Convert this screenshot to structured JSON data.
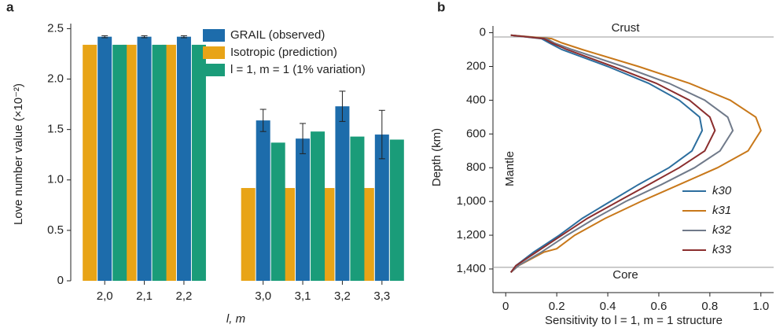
{
  "chart_data": [
    {
      "type": "bar",
      "panel_label": "a",
      "y_label": "Love number value (×10⁻²)",
      "x_label": "l, m",
      "categories": [
        "2,0",
        "2,1",
        "2,2",
        null,
        "3,0",
        "3,1",
        "3,2",
        "3,3"
      ],
      "series": [
        {
          "name": "GRAIL (observed)",
          "color": "#1d6cab",
          "values": [
            2.42,
            2.42,
            2.42,
            null,
            1.59,
            1.41,
            1.73,
            1.45
          ],
          "errors": [
            0.01,
            0.01,
            0.01,
            null,
            0.11,
            0.15,
            0.15,
            0.24
          ]
        },
        {
          "name": "Isotropic (prediction)",
          "color": "#e8a417",
          "values": [
            2.34,
            2.34,
            2.34,
            null,
            0.92,
            0.92,
            0.92,
            0.92
          ]
        },
        {
          "name": "l = 1, m = 1 (1% variation)",
          "color": "#1a9c79",
          "values": [
            2.34,
            2.34,
            2.34,
            null,
            1.37,
            1.48,
            1.43,
            1.4
          ]
        }
      ],
      "ylim": [
        0,
        2.55
      ],
      "yticks": [
        0,
        0.5,
        {
          "value": 1.0,
          "label": "1.0"
        },
        1.5,
        {
          "value": 2.0,
          "label": "2.0"
        },
        2.5
      ],
      "legend": "upper right"
    },
    {
      "type": "line",
      "panel_label": "b",
      "x_label": "Sensitivity to l = 1, m = 1 structure",
      "y_label": "Depth (km)",
      "y": [
        15,
        35,
        60,
        100,
        200,
        300,
        400,
        500,
        580,
        700,
        800,
        900,
        1000,
        1100,
        1200,
        1280,
        1300,
        1380,
        1420
      ],
      "series": [
        {
          "name": "k30",
          "color": "#2c6e9e",
          "values": [
            0.02,
            0.14,
            0.17,
            0.22,
            0.4,
            0.56,
            0.68,
            0.76,
            0.77,
            0.73,
            0.64,
            0.52,
            0.41,
            0.3,
            0.21,
            0.13,
            0.11,
            0.04,
            0.02
          ]
        },
        {
          "name": "k31",
          "color": "#c8781a",
          "values": [
            0.02,
            0.18,
            0.22,
            0.3,
            0.52,
            0.72,
            0.88,
            0.98,
            1.0,
            0.95,
            0.83,
            0.68,
            0.53,
            0.39,
            0.27,
            0.2,
            0.15,
            0.05,
            0.02
          ]
        },
        {
          "name": "k32",
          "color": "#707a8a",
          "values": [
            0.02,
            0.16,
            0.19,
            0.26,
            0.46,
            0.64,
            0.78,
            0.87,
            0.89,
            0.84,
            0.74,
            0.61,
            0.47,
            0.35,
            0.24,
            0.16,
            0.14,
            0.05,
            0.02
          ]
        },
        {
          "name": "k33",
          "color": "#8b2e2e",
          "values": [
            0.02,
            0.15,
            0.18,
            0.24,
            0.42,
            0.59,
            0.72,
            0.8,
            0.82,
            0.78,
            0.68,
            0.56,
            0.44,
            0.32,
            0.22,
            0.14,
            0.12,
            0.04,
            0.02
          ]
        }
      ],
      "xlim": [
        -0.05,
        1.05
      ],
      "xticks": [
        0,
        0.2,
        0.4,
        0.6,
        0.8,
        {
          "value": 1.0,
          "label": "1.0"
        }
      ],
      "ylim": [
        1540,
        -40
      ],
      "yticks": [
        0,
        200,
        400,
        600,
        800,
        {
          "value": 1000,
          "label": "1,000"
        },
        {
          "value": 1200,
          "label": "1,200"
        },
        {
          "value": 1400,
          "label": "1,400"
        }
      ],
      "layers": [
        {
          "label": "Crust",
          "depth": 25
        },
        {
          "label": "Mantle"
        },
        {
          "label": "Core",
          "depth": 1390
        }
      ],
      "legend": "lower right"
    }
  ]
}
